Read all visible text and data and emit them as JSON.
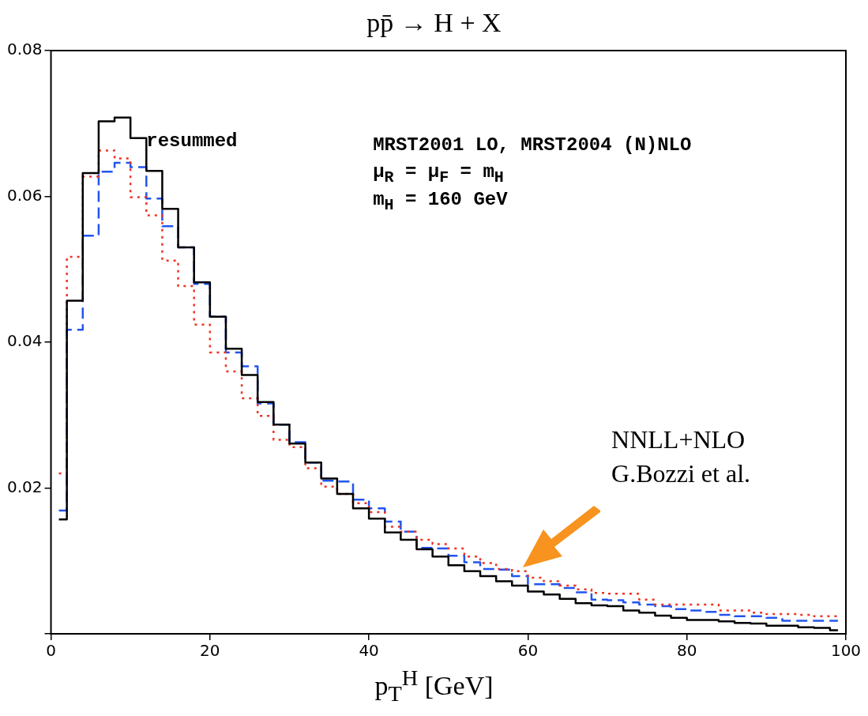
{
  "chart_data": {
    "type": "step",
    "title": "pp̄ → H + X",
    "xlabel": "p$_{T}$$^{H}$ [GeV]",
    "x": [
      1,
      3,
      5,
      7,
      9,
      11,
      13,
      15,
      17,
      19,
      21,
      23,
      25,
      27,
      29,
      31,
      33,
      35,
      37,
      39,
      41,
      43,
      45,
      47,
      49,
      51,
      53,
      55,
      57,
      59,
      61,
      63,
      65,
      67,
      69,
      71,
      73,
      75,
      77,
      79,
      81,
      83,
      85,
      87,
      89,
      91,
      93,
      95,
      97,
      99
    ],
    "series": [
      {
        "name": "resummed",
        "color": "#000000",
        "line_style": "solid",
        "values": [
          0.0157,
          0.0457,
          0.0632,
          0.0703,
          0.0708,
          0.068,
          0.0635,
          0.0583,
          0.053,
          0.0482,
          0.0435,
          0.0391,
          0.0355,
          0.0318,
          0.0287,
          0.0261,
          0.0235,
          0.0213,
          0.0192,
          0.0172,
          0.0158,
          0.0139,
          0.0129,
          0.0116,
          0.0106,
          0.0094,
          0.0086,
          0.0079,
          0.0072,
          0.0066,
          0.0058,
          0.0054,
          0.0048,
          0.0042,
          0.0039,
          0.0038,
          0.0032,
          0.0029,
          0.0025,
          0.0022,
          0.0019,
          0.0019,
          0.0017,
          0.0015,
          0.0014,
          0.0011,
          0.0011,
          0.0009,
          0.0008,
          0.0005
        ]
      },
      {
        "color": "#ee3322",
        "line_style": "dotted",
        "values": [
          0.022,
          0.0517,
          0.0627,
          0.0663,
          0.0652,
          0.0599,
          0.0574,
          0.0512,
          0.0477,
          0.0424,
          0.0386,
          0.036,
          0.0323,
          0.0299,
          0.0266,
          0.0256,
          0.0227,
          0.0202,
          0.0192,
          0.0179,
          0.0167,
          0.0147,
          0.014,
          0.0129,
          0.0123,
          0.0117,
          0.0106,
          0.0097,
          0.0089,
          0.0086,
          0.0077,
          0.0072,
          0.0066,
          0.0061,
          0.0056,
          0.0055,
          0.0055,
          0.0047,
          0.004,
          0.004,
          0.004,
          0.004,
          0.0032,
          0.0032,
          0.0029,
          0.0027,
          0.0027,
          0.0026,
          0.0024,
          0.0024
        ]
      },
      {
        "color": "#2255ee",
        "line_style": "dashed",
        "values": [
          0.0169,
          0.0417,
          0.0546,
          0.0634,
          0.0646,
          0.064,
          0.0597,
          0.0559,
          0.053,
          0.048,
          0.0435,
          0.0386,
          0.0367,
          0.0316,
          0.0287,
          0.0263,
          0.0235,
          0.021,
          0.0209,
          0.0184,
          0.0172,
          0.0154,
          0.014,
          0.0118,
          0.0117,
          0.0107,
          0.0098,
          0.0089,
          0.0088,
          0.0079,
          0.0068,
          0.0068,
          0.0063,
          0.0057,
          0.0047,
          0.0046,
          0.0043,
          0.004,
          0.0038,
          0.0034,
          0.0032,
          0.003,
          0.0026,
          0.0024,
          0.0024,
          0.0022,
          0.0018,
          0.0018,
          0.0018,
          0.0018
        ]
      }
    ],
    "xlim": [
      0,
      100
    ],
    "xticks": [
      0,
      20,
      40,
      60,
      80,
      100
    ],
    "ylim": [
      0,
      0.08
    ],
    "yticks": [
      {
        "value": 0,
        "label": null
      },
      0.02,
      0.04,
      0.06,
      0.08
    ],
    "grid": false,
    "legend": false,
    "annotations": [
      "MRST2001 LO, MRST2004 (N)NLO",
      "μ$_{R}$ = μ$_{F}$ =  m$_{H}$",
      "m$_{H}$ = 160 GeV",
      "NNLL+NLO",
      "G.Bozzi et al."
    ]
  }
}
